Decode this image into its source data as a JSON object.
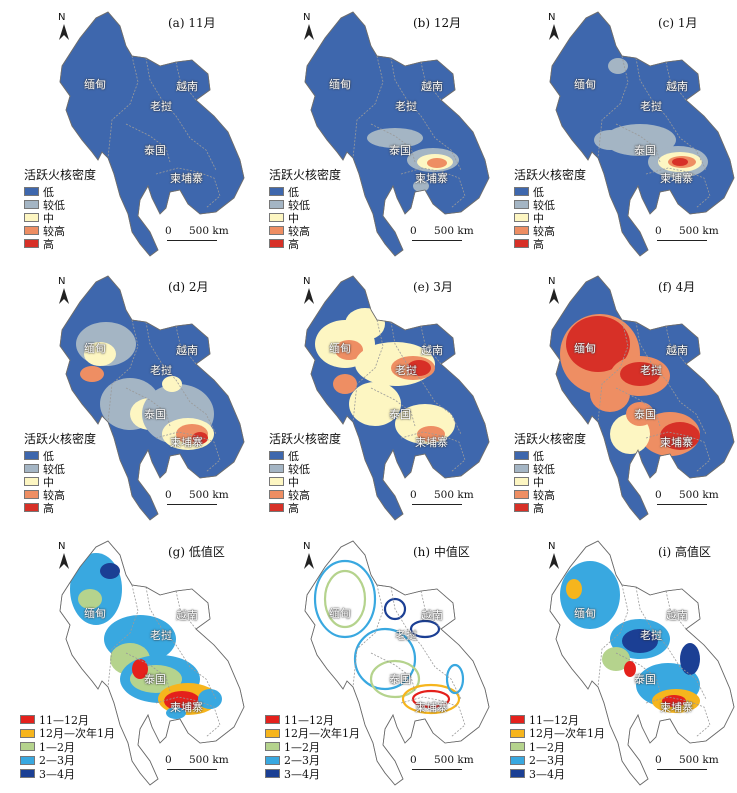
{
  "north_label": "N",
  "legend_title": "活跃火核密度",
  "density_legend": [
    {
      "label": "低",
      "color": "#3e67ad"
    },
    {
      "label": "较低",
      "color": "#a4b5c4"
    },
    {
      "label": "中",
      "color": "#fdf6c2"
    },
    {
      "label": "较高",
      "color": "#ee8e63"
    },
    {
      "label": "高",
      "color": "#d73027"
    }
  ],
  "period_legend": [
    {
      "label": "11—12月",
      "color": "#e4211c"
    },
    {
      "label": "12月—次年1月",
      "color": "#f6b51d"
    },
    {
      "label": "1—2月",
      "color": "#b5d38d"
    },
    {
      "label": "2—3月",
      "color": "#39a8e0"
    },
    {
      "label": "3—4月",
      "color": "#1b3f94"
    }
  ],
  "scale": {
    "zero": "0",
    "distance": "500 km"
  },
  "countries": {
    "myanmar": "缅甸",
    "vietnam": "越南",
    "laos": "老挝",
    "thailand": "泰国",
    "cambodia": "柬埔寨"
  },
  "panels": [
    {
      "id": "a",
      "title": "(a) 11月",
      "type": "density",
      "hot": 0
    },
    {
      "id": "b",
      "title": "(b) 12月",
      "type": "density",
      "hot": 1
    },
    {
      "id": "c",
      "title": "(c) 1月",
      "type": "density",
      "hot": 2
    },
    {
      "id": "d",
      "title": "(d) 2月",
      "type": "density",
      "hot": 3
    },
    {
      "id": "e",
      "title": "(e) 3月",
      "type": "density",
      "hot": 5
    },
    {
      "id": "f",
      "title": "(f) 4月",
      "type": "density",
      "hot": 4
    },
    {
      "id": "g",
      "title": "(g) 低值区",
      "type": "period"
    },
    {
      "id": "h",
      "title": "(h) 中值区",
      "type": "period"
    },
    {
      "id": "i",
      "title": "(i) 高值区",
      "type": "period"
    }
  ]
}
